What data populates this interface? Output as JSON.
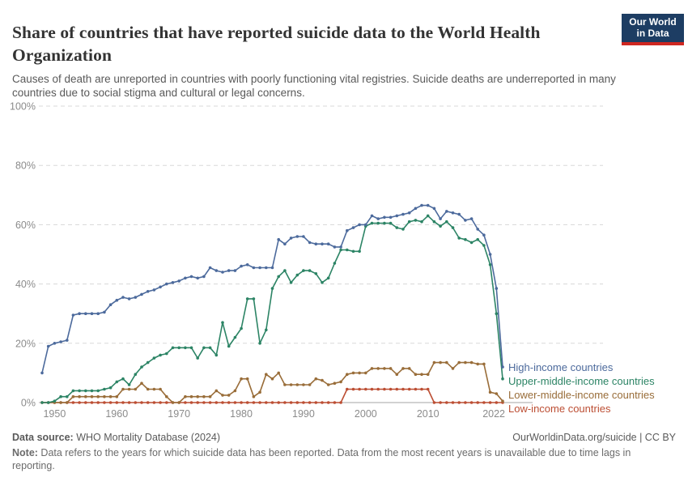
{
  "header": {
    "title": "Share of countries that have reported suicide data to the World Health Organization",
    "subtitle": "Causes of death are unreported in countries with poorly functioning vital registries. Suicide deaths are underreported in many countries due to social stigma and cultural or legal concerns.",
    "logo": {
      "line1": "Our World",
      "line2": "in Data",
      "bg_color": "#1d3d63",
      "accent_color": "#cf2721"
    }
  },
  "chart_data": {
    "type": "line",
    "title": "Share of countries that have reported suicide data to the World Health Organization",
    "xlabel": "",
    "ylabel": "",
    "ylim": [
      0,
      100
    ],
    "yticks": [
      0,
      20,
      40,
      60,
      80,
      100
    ],
    "ytick_suffix": "%",
    "xticks": [
      1950,
      1960,
      1970,
      1980,
      1990,
      2000,
      2010,
      2022
    ],
    "grid": "horizontal-dashed",
    "legend_position": "right-of-line-ends",
    "marker": "dot",
    "x": [
      1948,
      1949,
      1950,
      1951,
      1952,
      1953,
      1954,
      1955,
      1956,
      1957,
      1958,
      1959,
      1960,
      1961,
      1962,
      1963,
      1964,
      1965,
      1966,
      1967,
      1968,
      1969,
      1970,
      1971,
      1972,
      1973,
      1974,
      1975,
      1976,
      1977,
      1978,
      1979,
      1980,
      1981,
      1982,
      1983,
      1984,
      1985,
      1986,
      1987,
      1988,
      1989,
      1990,
      1991,
      1992,
      1993,
      1994,
      1995,
      1996,
      1997,
      1998,
      1999,
      2000,
      2001,
      2002,
      2003,
      2004,
      2005,
      2006,
      2007,
      2008,
      2009,
      2010,
      2011,
      2012,
      2013,
      2014,
      2015,
      2016,
      2017,
      2018,
      2019,
      2020,
      2021,
      2022
    ],
    "series": [
      {
        "name": "High-income countries",
        "color": "#4C6A9C",
        "values": [
          10,
          19,
          20,
          20.5,
          21,
          29.5,
          30,
          30,
          30,
          30,
          30.5,
          33,
          34.5,
          35.5,
          35,
          35.5,
          36.5,
          37.5,
          38,
          39,
          40,
          40.5,
          41,
          42,
          42.5,
          42,
          42.5,
          45.5,
          44.5,
          44,
          44.5,
          44.5,
          46,
          46.5,
          45.5,
          45.5,
          45.5,
          45.5,
          55,
          53.5,
          55.5,
          56,
          56,
          54,
          53.5,
          53.5,
          53.5,
          52.5,
          52.5,
          58,
          59,
          60,
          60,
          63,
          62,
          62.5,
          62.5,
          63,
          63.5,
          64,
          65.5,
          66.5,
          66.5,
          65.5,
          62,
          64.5,
          64,
          63.5,
          61.5,
          62,
          58.5,
          56.5,
          50,
          38.5,
          12
        ]
      },
      {
        "name": "Upper-middle-income countries",
        "color": "#2C8465",
        "values": [
          0,
          0,
          0.5,
          2,
          2,
          4,
          4,
          4,
          4,
          4,
          4.5,
          5,
          7,
          8,
          6,
          9.5,
          12,
          13.5,
          15,
          16,
          16.5,
          18.5,
          18.5,
          18.5,
          18.5,
          15,
          18.5,
          18.5,
          16,
          27,
          19,
          22,
          25,
          35,
          35,
          20,
          24.5,
          38.5,
          42.5,
          44.5,
          40.5,
          43,
          44.5,
          44.5,
          43.5,
          40.5,
          42,
          47,
          51.5,
          51.5,
          51,
          51,
          59.5,
          60.5,
          60.5,
          60.5,
          60.5,
          59,
          58.5,
          61,
          61.5,
          61,
          63,
          61,
          59.5,
          61,
          59,
          55.5,
          55,
          54,
          55,
          53,
          46.5,
          30,
          8
        ]
      },
      {
        "name": "Lower-middle-income countries",
        "color": "#996D39",
        "values": [
          0,
          0,
          0,
          0,
          0,
          2,
          2,
          2,
          2,
          2,
          2,
          2,
          2,
          4.5,
          4.5,
          4.5,
          6.5,
          4.5,
          4.5,
          4.5,
          2,
          0,
          0,
          2,
          2,
          2,
          2,
          2,
          4,
          2.5,
          2.5,
          4,
          8,
          8,
          2,
          3.5,
          9.5,
          8,
          10,
          6,
          6,
          6,
          6,
          6,
          8,
          7.5,
          6,
          6.5,
          7,
          9.5,
          10,
          10,
          10,
          11.5,
          11.5,
          11.5,
          11.5,
          9.5,
          11.5,
          11.5,
          9.5,
          9.5,
          9.5,
          13.5,
          13.5,
          13.5,
          11.5,
          13.5,
          13.5,
          13.5,
          13,
          13,
          3.5,
          3,
          0.5
        ]
      },
      {
        "name": "Low-income countries",
        "color": "#BC4E33",
        "values": [
          0,
          0,
          0,
          0,
          0,
          0,
          0,
          0,
          0,
          0,
          0,
          0,
          0,
          0,
          0,
          0,
          0,
          0,
          0,
          0,
          0,
          0,
          0,
          0,
          0,
          0,
          0,
          0,
          0,
          0,
          0,
          0,
          0,
          0,
          0,
          0,
          0,
          0,
          0,
          0,
          0,
          0,
          0,
          0,
          0,
          0,
          0,
          0,
          0,
          4.5,
          4.5,
          4.5,
          4.5,
          4.5,
          4.5,
          4.5,
          4.5,
          4.5,
          4.5,
          4.5,
          4.5,
          4.5,
          4.5,
          0,
          0,
          0,
          0,
          0,
          0,
          0,
          0,
          0,
          0,
          0,
          0
        ]
      }
    ]
  },
  "footer": {
    "source_label": "Data source:",
    "source_text": " WHO Mortality Database (2024)",
    "attribution": "OurWorldinData.org/suicide | CC BY",
    "note_label": "Note:",
    "note_text": " Data refers to the years for which suicide data has been reported. Data from the most recent years is unavailable due to time lags in reporting."
  }
}
